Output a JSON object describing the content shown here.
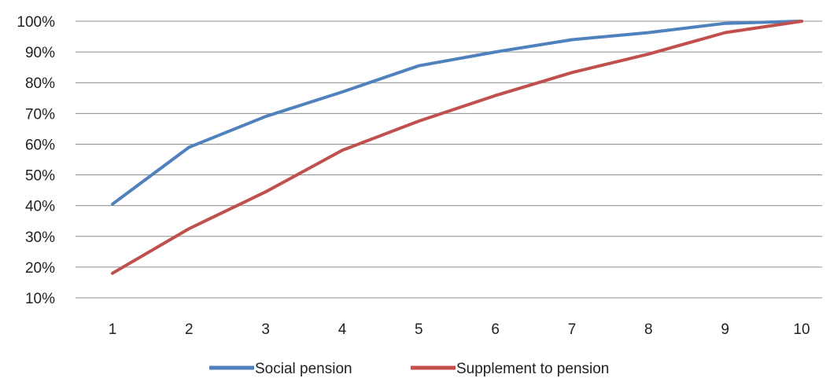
{
  "chart_data": {
    "type": "line",
    "title": "",
    "xlabel": "",
    "ylabel": "",
    "x": [
      1,
      2,
      3,
      4,
      5,
      6,
      7,
      8,
      9,
      10
    ],
    "x_tick_labels": [
      "1",
      "2",
      "3",
      "4",
      "5",
      "6",
      "7",
      "8",
      "9",
      "10"
    ],
    "ylim": [
      10,
      100
    ],
    "y_ticks": [
      10,
      20,
      30,
      40,
      50,
      60,
      70,
      80,
      90,
      100
    ],
    "y_tick_labels": [
      "10%",
      "20%",
      "30%",
      "40%",
      "50%",
      "60%",
      "70%",
      "80%",
      "90%",
      "100%"
    ],
    "grid": "horizontal",
    "legend_position": "bottom",
    "series": [
      {
        "name": "Social pension",
        "color": "#4F81BD",
        "values": [
          40.5,
          59,
          69,
          77,
          85.5,
          90,
          94,
          96.3,
          99.3,
          100
        ]
      },
      {
        "name": "Supplement to pension",
        "color": "#C0504D",
        "values": [
          18,
          32.5,
          44.5,
          58,
          67.5,
          75.8,
          83.3,
          89.3,
          96.3,
          100
        ]
      }
    ]
  }
}
